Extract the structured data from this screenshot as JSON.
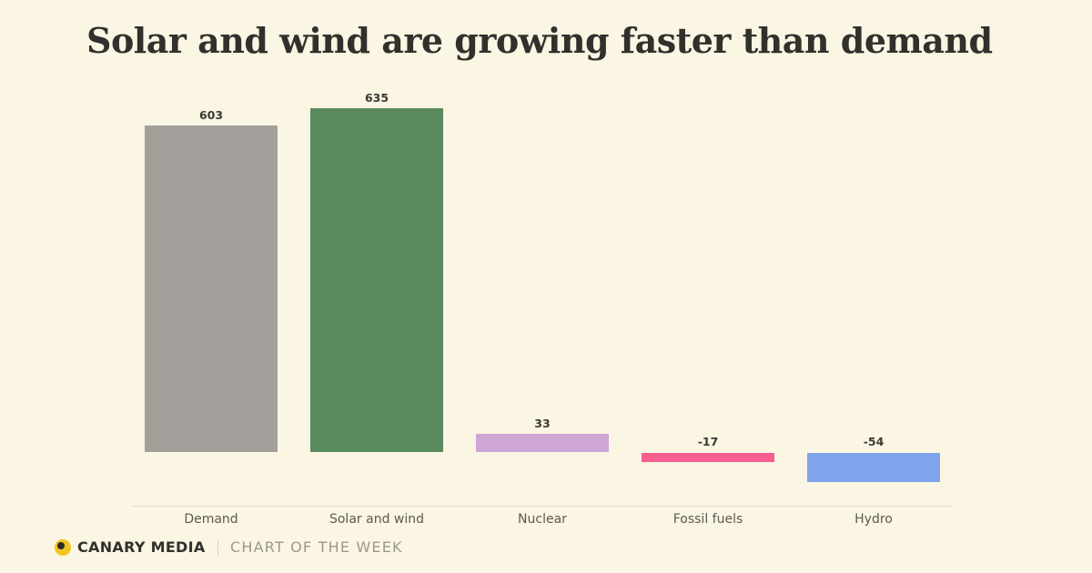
{
  "chart_data": {
    "type": "bar",
    "title": "Solar and wind are growing faster than demand",
    "categories": [
      "Demand",
      "Solar and wind",
      "Nuclear",
      "Fossil fuels",
      "Hydro"
    ],
    "values": [
      603,
      635,
      33,
      -17,
      -54
    ],
    "value_labels": [
      "603",
      "635",
      "33",
      "-17",
      "-54"
    ],
    "bar_colors": [
      "#a3a09c",
      "#588a5e",
      "#cfa6d6",
      "#f75f90",
      "#7fa4ec"
    ],
    "xlabel": "",
    "ylabel": "",
    "ylim": [
      -80,
      700
    ],
    "baseline": 0,
    "grid": false,
    "legend": false
  },
  "footer": {
    "brand": "CANARY MEDIA",
    "divider": "|",
    "tagline": "CHART OF THE WEEK"
  },
  "colors": {
    "background": "#fbf5e3",
    "title": "#32302c",
    "axis_line": "#e3dcc8",
    "category_label": "#5b5953",
    "value_label": "#3a3833",
    "divider": "#cdc9ba",
    "tagline": "#9b988c",
    "logo_yellow": "#f2c51e",
    "logo_dot": "#2b2a26"
  }
}
